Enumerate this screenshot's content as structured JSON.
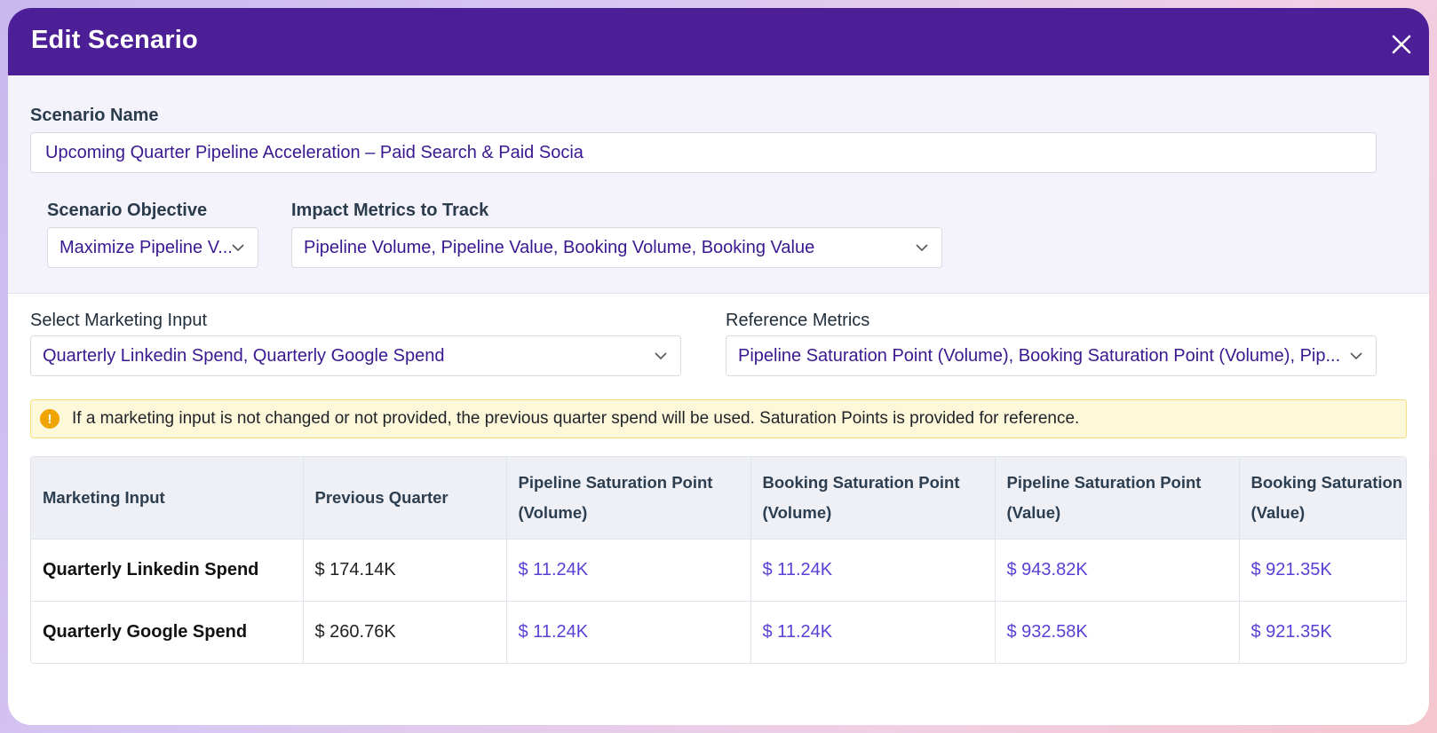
{
  "dialog": {
    "title": "Edit Scenario"
  },
  "scenario_name": {
    "label": "Scenario Name",
    "value": "Upcoming Quarter Pipeline Acceleration – Paid Search & Paid Socia"
  },
  "scenario_objective": {
    "label": "Scenario Objective",
    "value": "Maximize Pipeline V..."
  },
  "impact_metrics": {
    "label": "Impact Metrics to Track",
    "value": "Pipeline Volume, Pipeline Value, Booking Volume, Booking Value"
  },
  "marketing_input": {
    "label": "Select Marketing Input",
    "value": "Quarterly Linkedin Spend, Quarterly Google Spend"
  },
  "reference_metrics": {
    "label": "Reference Metrics",
    "value": "Pipeline Saturation Point (Volume), Booking Saturation Point (Volume), Pip..."
  },
  "alert": {
    "icon": "info-icon",
    "text": "If a marketing input is not changed or not provided, the previous quarter spend will be used. Saturation Points is provided for reference."
  },
  "table": {
    "headers": [
      {
        "line1": "Marketing Input",
        "line2": ""
      },
      {
        "line1": "Previous Quarter",
        "line2": ""
      },
      {
        "line1": "Pipeline Saturation Point",
        "line2": "(Volume)"
      },
      {
        "line1": "Booking Saturation Point",
        "line2": "(Volume)"
      },
      {
        "line1": "Pipeline Saturation Point",
        "line2": "(Value)"
      },
      {
        "line1": "Booking Saturation Point",
        "line2": "(Value)"
      }
    ],
    "rows": [
      {
        "name": "Quarterly Linkedin Spend",
        "prev": "$ 174.14K",
        "pipe_vol": "$ 11.24K",
        "book_vol": "$ 11.24K",
        "pipe_val": "$ 943.82K",
        "book_val": "$ 921.35K"
      },
      {
        "name": "Quarterly Google Spend",
        "prev": "$ 260.76K",
        "pipe_vol": "$ 11.24K",
        "book_vol": "$ 11.24K",
        "pipe_val": "$ 932.58K",
        "book_val": "$ 921.35K"
      }
    ]
  },
  "colors": {
    "header_bg": "#4d1f96",
    "accent_text": "#3a1890",
    "saturation_value": "#5a3fd6",
    "alert_bg": "#fdf8d9",
    "alert_icon": "#f0a400"
  }
}
